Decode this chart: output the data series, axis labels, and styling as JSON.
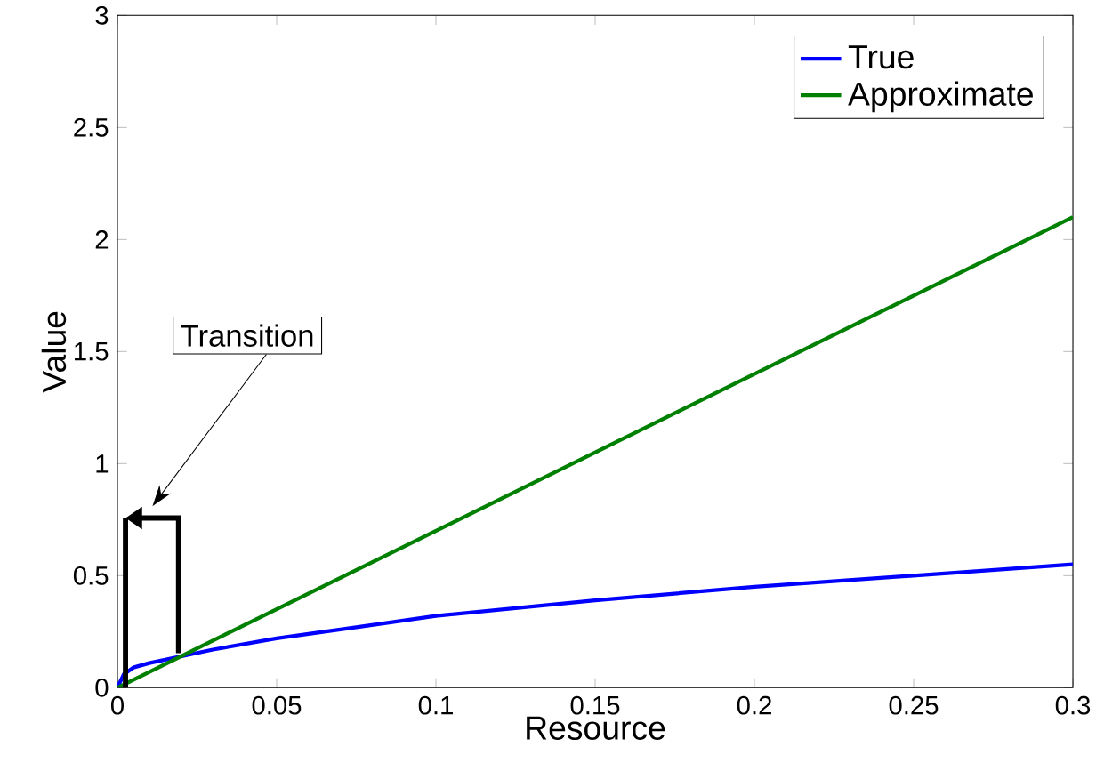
{
  "chart_data": {
    "type": "line",
    "xlabel": "Resource",
    "ylabel": "Value",
    "xlim": [
      0,
      0.3
    ],
    "ylim": [
      0,
      3
    ],
    "xticks": [
      0,
      0.05,
      0.1,
      0.15,
      0.2,
      0.25,
      0.3
    ],
    "yticks": [
      0,
      0.5,
      1,
      1.5,
      2,
      2.5,
      3
    ],
    "series": [
      {
        "name": "True",
        "color": "#0000ff",
        "x": [
          0,
          0.002,
          0.005,
          0.01,
          0.02,
          0.03,
          0.05,
          0.075,
          0.1,
          0.15,
          0.2,
          0.25,
          0.3
        ],
        "values": [
          0,
          0.06,
          0.09,
          0.11,
          0.14,
          0.17,
          0.22,
          0.27,
          0.32,
          0.39,
          0.45,
          0.5,
          0.55
        ]
      },
      {
        "name": "Approximate",
        "color": "#008000",
        "x": [
          0,
          0.3
        ],
        "values": [
          0,
          2.1
        ]
      }
    ],
    "annotations": [
      "Transition"
    ],
    "legend": "top right",
    "grid": false,
    "marker": "none",
    "line_style": "solid"
  }
}
